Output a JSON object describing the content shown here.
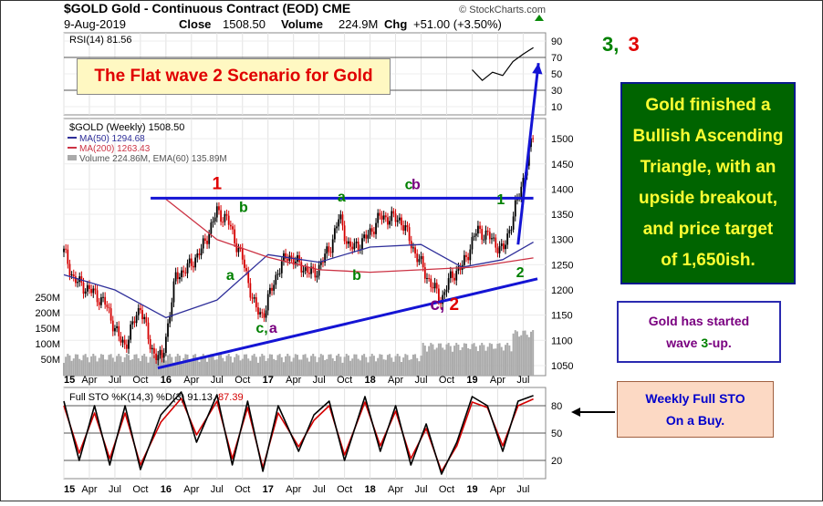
{
  "header": {
    "ticker_line": "$GOLD Gold - Continuous Contract (EOD) CME",
    "watermark": "© StockCharts.com",
    "date": "9-Aug-2019",
    "close_label": "Close",
    "close_value": "1508.50",
    "volume_label": "Volume",
    "volume_value": "224.9M",
    "chg_label": "Chg",
    "chg_value": "+51.00 (+3.50%)"
  },
  "annotations": {
    "scenario_title": "The Flat wave 2 Scenario for Gold",
    "triangle_lines": [
      "Gold finished a",
      "Bullish Ascending",
      "Triangle, with an",
      "upside breakout,",
      "and price target",
      "of 1,650ish."
    ],
    "wave3_line1": "Gold has started",
    "wave3_prefix": "wave ",
    "wave3_number": "3",
    "wave3_suffix": "-up.",
    "sto_line1": "Weekly Full STO",
    "sto_line2": "On a Buy.",
    "target_label_green": "3,",
    "target_label_red": "3"
  },
  "colors": {
    "price_up": "#000000",
    "price_down": "#d40000",
    "ma50": "#2f2f9a",
    "ma200": "#cc3344",
    "volume": "#aaaaaa",
    "trendline": "#1414d4",
    "wave_red": "#e00000",
    "wave_green": "#008000",
    "wave_purple": "#7a0080"
  },
  "chart_data": {
    "type": "line",
    "panels": [
      {
        "name": "rsi",
        "legend": "RSI(14) 81.56",
        "y_ticks": [
          90,
          70,
          50,
          30,
          10
        ],
        "reference_lines": [
          70,
          30
        ],
        "ylim": [
          0,
          100
        ],
        "series": [
          {
            "name": "RSI(14)",
            "x": [
              2019.0,
              2019.1,
              2019.2,
              2019.3,
              2019.4,
              2019.5,
              2019.55,
              2019.6
            ],
            "values": [
              55,
              42,
              52,
              48,
              65,
              74,
              78,
              82
            ]
          }
        ]
      },
      {
        "name": "price",
        "legend": [
          "$GOLD (Weekly) 1508.50",
          "MA(50) 1294.68",
          "MA(200) 1263.43",
          "Volume 224.86M, EMA(60) 135.89M"
        ],
        "y_ticks": [
          1500,
          1450,
          1400,
          1350,
          1300,
          1250,
          1200,
          1150,
          1100,
          1050
        ],
        "ylim": [
          1030,
          1540
        ],
        "volume_ticks": [
          "250M",
          "200M",
          "150M",
          "100M",
          "50M"
        ],
        "series": [
          {
            "name": "$GOLD (Weekly)",
            "x": [
              2015.0,
              2015.1,
              2015.25,
              2015.4,
              2015.55,
              2015.6,
              2015.75,
              2015.85,
              2015.96,
              2016.1,
              2016.2,
              2016.35,
              2016.5,
              2016.6,
              2016.75,
              2016.88,
              2016.95,
              2017.1,
              2017.2,
              2017.3,
              2017.45,
              2017.6,
              2017.7,
              2017.8,
              2017.95,
              2018.1,
              2018.3,
              2018.45,
              2018.6,
              2018.7,
              2018.8,
              2018.9,
              2019.05,
              2019.2,
              2019.3,
              2019.4,
              2019.5,
              2019.6
            ],
            "values": [
              1275,
              1220,
              1200,
              1175,
              1100,
              1090,
              1170,
              1085,
              1060,
              1230,
              1240,
              1280,
              1355,
              1340,
              1260,
              1160,
              1150,
              1240,
              1270,
              1250,
              1230,
              1280,
              1345,
              1280,
              1300,
              1345,
              1340,
              1270,
              1210,
              1180,
              1230,
              1245,
              1320,
              1300,
              1275,
              1345,
              1420,
              1508.5
            ]
          },
          {
            "name": "MA(50)",
            "x": [
              2015.0,
              2015.5,
              2016.0,
              2016.5,
              2017.0,
              2017.5,
              2018.0,
              2018.5,
              2018.9,
              2019.3,
              2019.6
            ],
            "values": [
              1230,
              1200,
              1145,
              1180,
              1270,
              1255,
              1285,
              1290,
              1245,
              1260,
              1294.7
            ]
          },
          {
            "name": "MA(200)",
            "x": [
              2016.0,
              2016.5,
              2017.0,
              2017.5,
              2018.0,
              2018.5,
              2019.0,
              2019.6
            ],
            "values": [
              1380,
              1300,
              1265,
              1240,
              1235,
              1240,
              1245,
              1263.4
            ]
          }
        ],
        "trendlines": [
          {
            "name": "resistance",
            "x": [
              2015.85,
              2019.6
            ],
            "values": [
              1382,
              1382
            ]
          },
          {
            "name": "support",
            "x": [
              2015.92,
              2019.64
            ],
            "values": [
              1045,
              1222
            ]
          },
          {
            "name": "target-arrow",
            "x": [
              2019.45,
              2019.65
            ],
            "values": [
              1290,
              1650
            ]
          }
        ],
        "wave_labels": [
          {
            "text": "1",
            "color": "red",
            "x": 2016.5,
            "y": 1400
          },
          {
            "text": "a",
            "color": "green",
            "x": 2016.63,
            "y": 1220
          },
          {
            "text": "b",
            "color": "green",
            "x": 2016.76,
            "y": 1355
          },
          {
            "text": "c,",
            "color": "green",
            "x": 2016.94,
            "y": 1115
          },
          {
            "text": "a",
            "color": "purple",
            "x": 2017.05,
            "y": 1115
          },
          {
            "text": "a",
            "color": "green",
            "x": 2017.72,
            "y": 1375
          },
          {
            "text": "b",
            "color": "green",
            "x": 2017.87,
            "y": 1220
          },
          {
            "text": "c",
            "color": "green",
            "x": 2018.38,
            "y": 1400
          },
          {
            "text": "b",
            "color": "purple",
            "x": 2018.45,
            "y": 1400
          },
          {
            "text": "c, 2",
            "color": "purple-red",
            "x": 2018.73,
            "y": 1160
          },
          {
            "text": "1",
            "color": "green",
            "x": 2019.28,
            "y": 1370
          },
          {
            "text": "2",
            "color": "green",
            "x": 2019.47,
            "y": 1225
          }
        ]
      },
      {
        "name": "stochastic",
        "legend_prefix": "Full STO %K(14,3) %D(3)",
        "k_value": "91.13",
        "d_value": "87.39",
        "y_ticks": [
          80,
          50,
          20
        ],
        "reference_lines": [
          80,
          50,
          20
        ],
        "ylim": [
          0,
          100
        ],
        "series": [
          {
            "name": "%K",
            "x": [
              2015.0,
              2015.15,
              2015.3,
              2015.45,
              2015.6,
              2015.75,
              2015.95,
              2016.15,
              2016.3,
              2016.5,
              2016.65,
              2016.8,
              2016.95,
              2017.1,
              2017.3,
              2017.45,
              2017.6,
              2017.75,
              2017.95,
              2018.1,
              2018.25,
              2018.4,
              2018.55,
              2018.7,
              2018.85,
              2019.0,
              2019.15,
              2019.3,
              2019.45,
              2019.6
            ],
            "values": [
              85,
              20,
              80,
              15,
              80,
              10,
              70,
              95,
              40,
              92,
              15,
              85,
              8,
              80,
              30,
              70,
              85,
              20,
              90,
              30,
              80,
              15,
              60,
              5,
              40,
              90,
              80,
              30,
              85,
              91.1
            ]
          },
          {
            "name": "%D",
            "x": [
              2015.0,
              2015.15,
              2015.3,
              2015.45,
              2015.6,
              2015.75,
              2015.95,
              2016.15,
              2016.3,
              2016.5,
              2016.65,
              2016.8,
              2016.95,
              2017.1,
              2017.3,
              2017.45,
              2017.6,
              2017.75,
              2017.95,
              2018.1,
              2018.25,
              2018.4,
              2018.55,
              2018.7,
              2018.85,
              2019.0,
              2019.15,
              2019.3,
              2019.45,
              2019.6
            ],
            "values": [
              80,
              28,
              72,
              22,
              72,
              15,
              62,
              88,
              48,
              85,
              22,
              78,
              12,
              72,
              35,
              64,
              80,
              26,
              84,
              36,
              74,
              22,
              55,
              8,
              36,
              84,
              78,
              36,
              80,
              87.4
            ]
          }
        ]
      }
    ],
    "x_axis": {
      "labels": [
        "15",
        "Apr",
        "Jul",
        "Oct",
        "16",
        "Apr",
        "Jul",
        "Oct",
        "17",
        "Apr",
        "Jul",
        "Oct",
        "18",
        "Apr",
        "Jul",
        "Oct",
        "19",
        "Apr",
        "Jul"
      ],
      "positions": [
        2015.0,
        2015.25,
        2015.5,
        2015.75,
        2016.0,
        2016.25,
        2016.5,
        2016.75,
        2017.0,
        2017.25,
        2017.5,
        2017.75,
        2018.0,
        2018.25,
        2018.5,
        2018.75,
        2019.0,
        2019.25,
        2019.5
      ],
      "bold": [
        "15",
        "16",
        "17",
        "18",
        "19"
      ]
    }
  }
}
